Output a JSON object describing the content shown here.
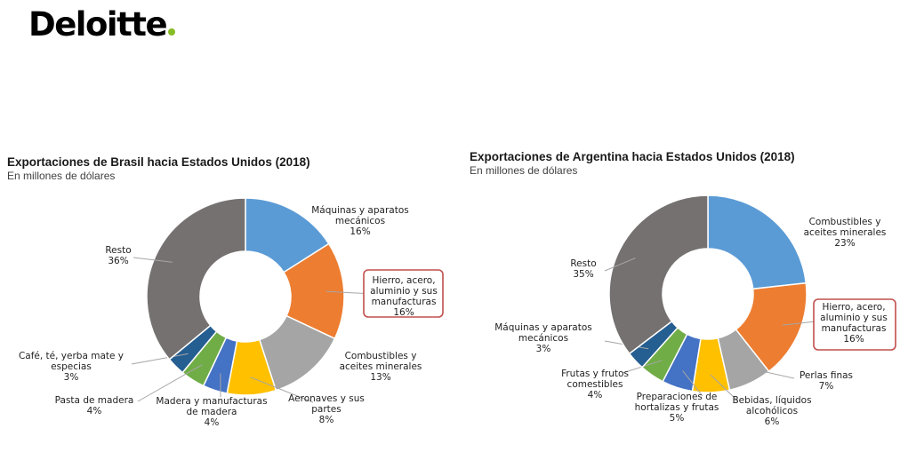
{
  "brand": {
    "name": "Deloitte"
  },
  "chart_data": [
    {
      "type": "pie",
      "title": "Exportaciones de Brasil hacia Estados Unidos (2018)",
      "subtitle": "En millones de dólares",
      "slices": [
        {
          "label_lines": [
            "Máquinas y aparatos",
            "mecánicos"
          ],
          "value": 16,
          "pct_label": "16%",
          "color": "#5b9bd5",
          "highlighted": false
        },
        {
          "label_lines": [
            "Hierro, acero,",
            "aluminio y sus",
            "manufacturas"
          ],
          "value": 16,
          "pct_label": "16%",
          "color": "#ed7d31",
          "highlighted": true
        },
        {
          "label_lines": [
            "Combustibles y",
            "aceites minerales"
          ],
          "value": 13,
          "pct_label": "13%",
          "color": "#a5a5a5",
          "highlighted": false
        },
        {
          "label_lines": [
            "Aeronaves y sus",
            "partes"
          ],
          "value": 8,
          "pct_label": "8%",
          "color": "#ffc000",
          "highlighted": false
        },
        {
          "label_lines": [
            "Madera y manufacturas",
            "de madera"
          ],
          "value": 4,
          "pct_label": "4%",
          "color": "#4472c4",
          "highlighted": false
        },
        {
          "label_lines": [
            "Pasta de madera"
          ],
          "value": 4,
          "pct_label": "4%",
          "color": "#70ad47",
          "highlighted": false
        },
        {
          "label_lines": [
            "Café, té, yerba mate y",
            "especias"
          ],
          "value": 3,
          "pct_label": "3%",
          "color": "#255e91",
          "highlighted": false
        },
        {
          "label_lines": [
            "Resto"
          ],
          "value": 36,
          "pct_label": "36%",
          "color": "#767171",
          "highlighted": false
        }
      ]
    },
    {
      "type": "pie",
      "title": "Exportaciones de Argentina hacia Estados Unidos (2018)",
      "subtitle": "En millones de dólares",
      "slices": [
        {
          "label_lines": [
            "Combustibles y",
            "aceites minerales"
          ],
          "value": 23,
          "pct_label": "23%",
          "color": "#5b9bd5",
          "highlighted": false
        },
        {
          "label_lines": [
            "Hierro, acero,",
            "aluminio y sus",
            "manufacturas"
          ],
          "value": 16,
          "pct_label": "16%",
          "color": "#ed7d31",
          "highlighted": true
        },
        {
          "label_lines": [
            "Perlas finas"
          ],
          "value": 7,
          "pct_label": "7%",
          "color": "#a5a5a5",
          "highlighted": false
        },
        {
          "label_lines": [
            "Bebidas, líquidos",
            "alcohólicos"
          ],
          "value": 6,
          "pct_label": "6%",
          "color": "#ffc000",
          "highlighted": false
        },
        {
          "label_lines": [
            "Preparaciones de",
            "hortalizas y frutas"
          ],
          "value": 5,
          "pct_label": "5%",
          "color": "#4472c4",
          "highlighted": false
        },
        {
          "label_lines": [
            "Frutas y frutos",
            "comestibles"
          ],
          "value": 4,
          "pct_label": "4%",
          "color": "#70ad47",
          "highlighted": false
        },
        {
          "label_lines": [
            "Máquinas y aparatos",
            "mecánicos"
          ],
          "value": 3,
          "pct_label": "3%",
          "color": "#255e91",
          "highlighted": false
        },
        {
          "label_lines": [
            "Resto"
          ],
          "value": 35,
          "pct_label": "35%",
          "color": "#767171",
          "highlighted": false
        }
      ]
    }
  ]
}
